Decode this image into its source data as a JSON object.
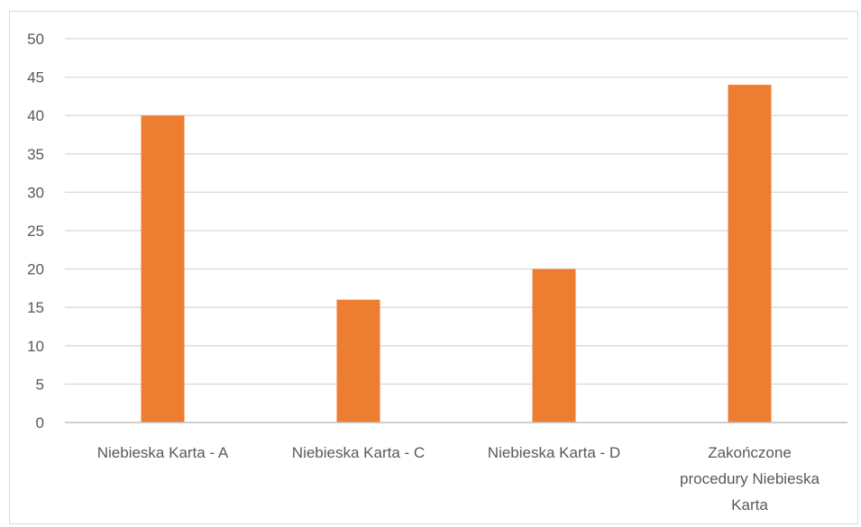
{
  "chart_data": {
    "type": "bar",
    "title": "",
    "xlabel": "",
    "ylabel": "",
    "ylim": [
      0,
      50
    ],
    "ytick_step": 5,
    "yticks": [
      "0",
      "5",
      "10",
      "15",
      "20",
      "25",
      "30",
      "35",
      "40",
      "45",
      "50"
    ],
    "grid": true,
    "legend": "none",
    "categories": [
      [
        "Niebieska Karta - A"
      ],
      [
        "Niebieska Karta - C"
      ],
      [
        "Niebieska Karta - D"
      ],
      [
        "Zakończone",
        "procedury Niebieska",
        "Karta"
      ]
    ],
    "series": [
      {
        "values": [
          40,
          16,
          20,
          44
        ],
        "color": "#ED7D31"
      }
    ],
    "gridline_color": "#d9d9d9",
    "axis_color": "#bfbfbf"
  }
}
